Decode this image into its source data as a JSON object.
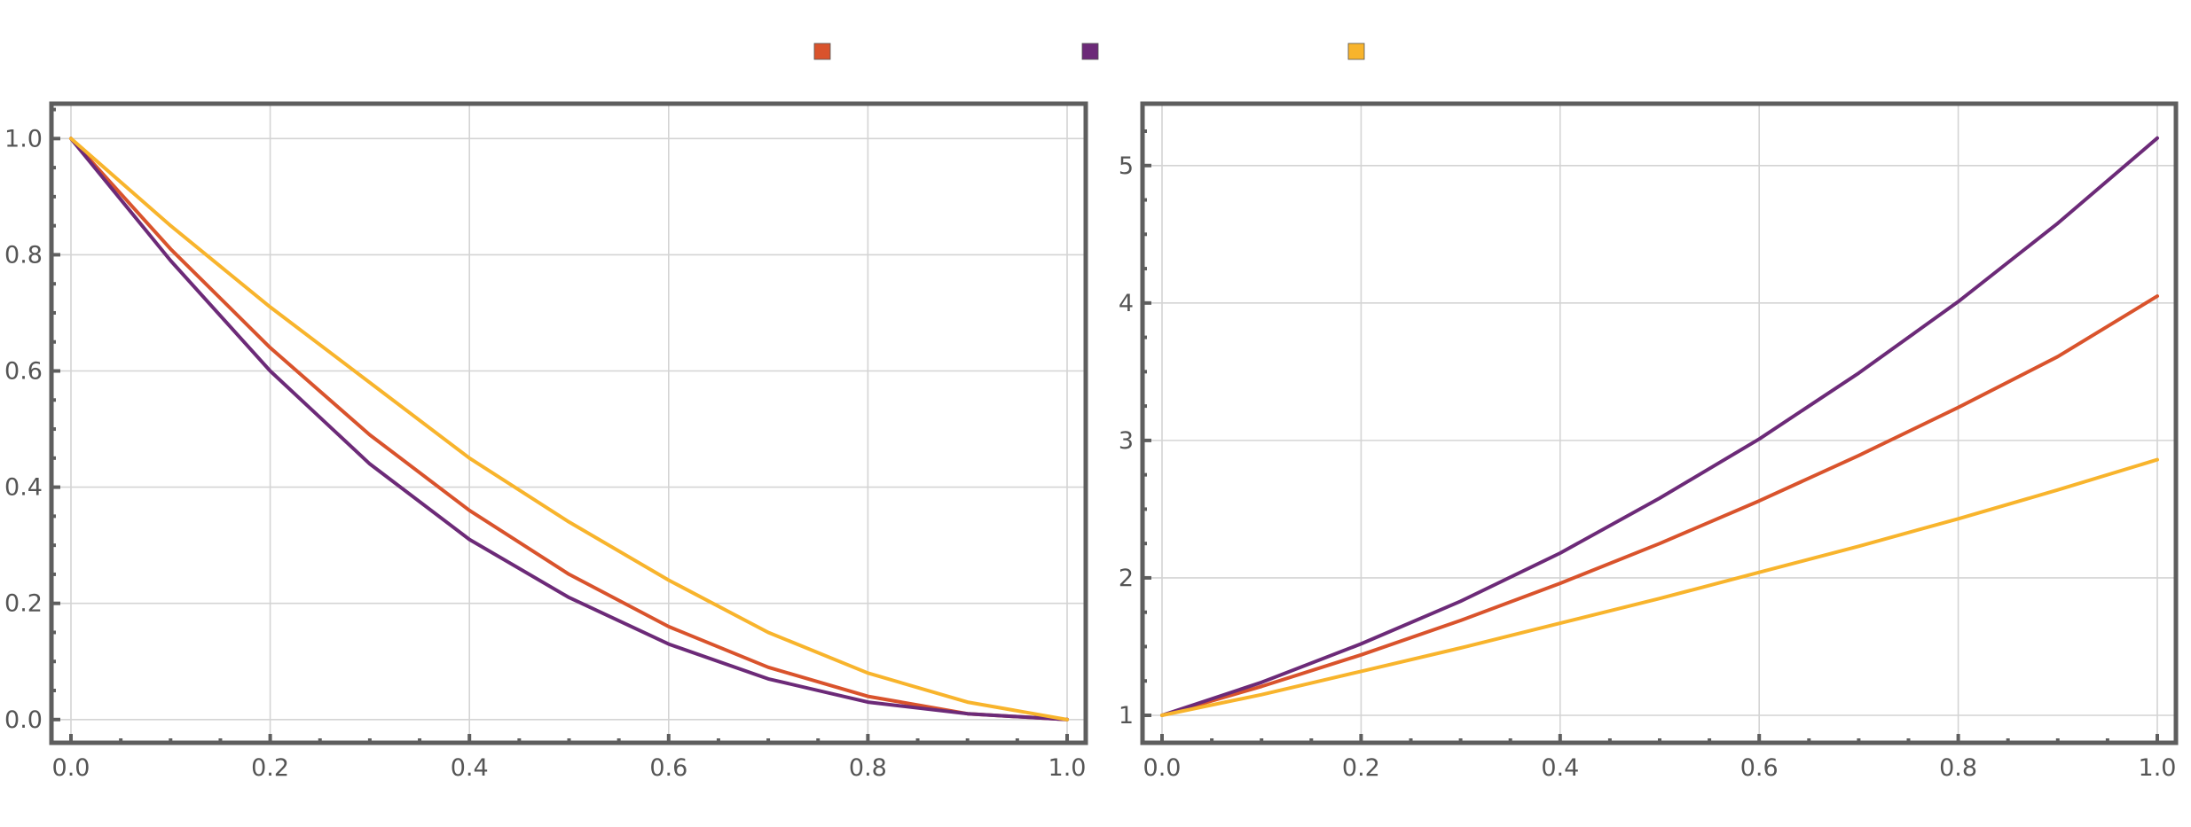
{
  "legend": {
    "placement": "top-center",
    "entries": [
      {
        "color": "#d9532c",
        "label": ""
      },
      {
        "color": "#6c2a78",
        "label": ""
      },
      {
        "color": "#f8b42c",
        "label": ""
      }
    ]
  },
  "chart_data": [
    {
      "type": "line",
      "title": "",
      "xlabel": "",
      "ylabel": "",
      "xlim": [
        0,
        1
      ],
      "ylim": [
        -0.04,
        1.06
      ],
      "xticks": [
        0.0,
        0.2,
        0.4,
        0.6,
        0.8,
        1.0
      ],
      "xtick_labels": [
        "0.0",
        "0.2",
        "0.4",
        "0.6",
        "0.8",
        "1.0"
      ],
      "yticks": [
        0.0,
        0.2,
        0.4,
        0.6,
        0.8,
        1.0
      ],
      "ytick_labels": [
        "0.0",
        "0.2",
        "0.4",
        "0.6",
        "0.8",
        "1.0"
      ],
      "grid": true,
      "x": [
        0.0,
        0.1,
        0.2,
        0.3,
        0.4,
        0.5,
        0.6,
        0.7,
        0.8,
        0.9,
        1.0
      ],
      "series": [
        {
          "color": "#d9532c",
          "values": [
            1.0,
            0.81,
            0.64,
            0.49,
            0.36,
            0.25,
            0.16,
            0.09,
            0.04,
            0.01,
            0.0
          ]
        },
        {
          "color": "#6c2a78",
          "values": [
            1.0,
            0.79,
            0.6,
            0.44,
            0.31,
            0.21,
            0.13,
            0.07,
            0.03,
            0.01,
            0.0
          ]
        },
        {
          "color": "#f8b42c",
          "values": [
            1.0,
            0.85,
            0.71,
            0.58,
            0.45,
            0.34,
            0.24,
            0.15,
            0.08,
            0.03,
            0.0
          ]
        }
      ]
    },
    {
      "type": "line",
      "title": "",
      "xlabel": "",
      "ylabel": "",
      "xlim": [
        0,
        1
      ],
      "ylim": [
        0.8,
        5.45
      ],
      "xticks": [
        0.0,
        0.2,
        0.4,
        0.6,
        0.8,
        1.0
      ],
      "xtick_labels": [
        "0.0",
        "0.2",
        "0.4",
        "0.6",
        "0.8",
        "1.0"
      ],
      "yticks": [
        1,
        2,
        3,
        4,
        5
      ],
      "ytick_labels": [
        "1",
        "2",
        "3",
        "4",
        "5"
      ],
      "grid": true,
      "x": [
        0.0,
        0.1,
        0.2,
        0.3,
        0.4,
        0.5,
        0.6,
        0.7,
        0.8,
        0.9,
        1.0
      ],
      "series": [
        {
          "color": "#d9532c",
          "values": [
            1.0,
            1.21,
            1.44,
            1.69,
            1.96,
            2.25,
            2.56,
            2.89,
            3.24,
            3.61,
            4.05
          ]
        },
        {
          "color": "#6c2a78",
          "values": [
            1.0,
            1.24,
            1.52,
            1.83,
            2.18,
            2.58,
            3.01,
            3.49,
            4.01,
            4.58,
            5.2
          ]
        },
        {
          "color": "#f8b42c",
          "values": [
            1.0,
            1.15,
            1.32,
            1.49,
            1.67,
            1.85,
            2.04,
            2.23,
            2.43,
            2.64,
            2.86
          ]
        }
      ]
    }
  ]
}
